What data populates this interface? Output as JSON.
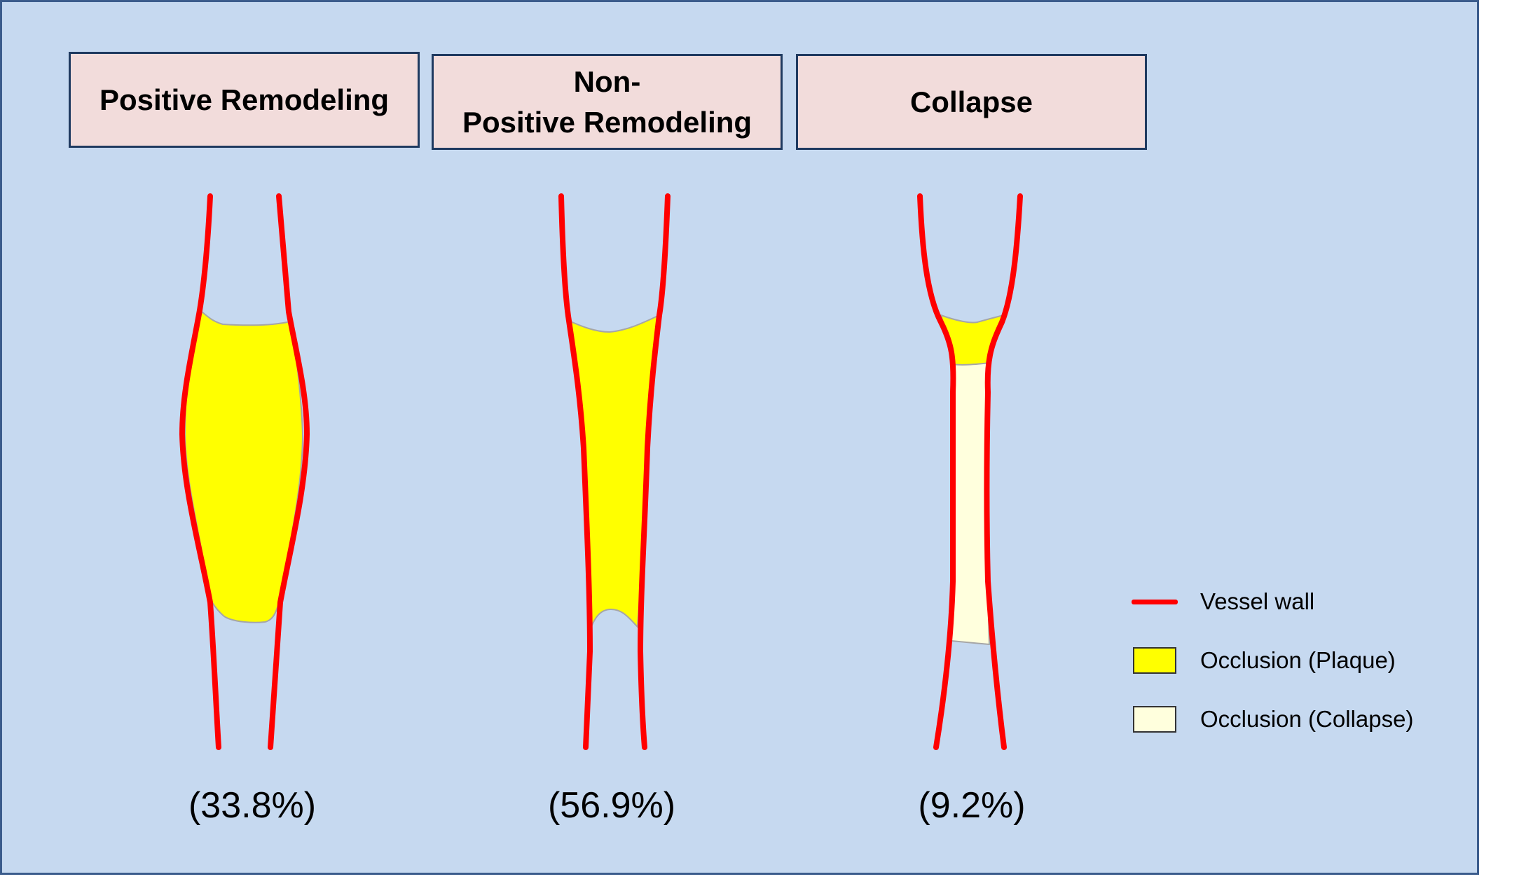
{
  "panels": [
    {
      "title_lines": [
        "Positive Remodeling"
      ],
      "percentage": "(33.8%)"
    },
    {
      "title_lines": [
        "Non-",
        "Positive Remodeling"
      ],
      "percentage": "(56.9%)"
    },
    {
      "title_lines": [
        "Collapse"
      ],
      "percentage": "(9.2%)"
    }
  ],
  "legend": {
    "vessel_wall": "Vessel wall",
    "plaque": "Occlusion (Plaque)",
    "collapse": "Occlusion (Collapse)"
  },
  "colors": {
    "background": "#c6d9f0",
    "title_box": "#f2dcdb",
    "vessel_wall": "#ff0000",
    "plaque": "#ffff00",
    "collapse": "#ffffdd"
  }
}
